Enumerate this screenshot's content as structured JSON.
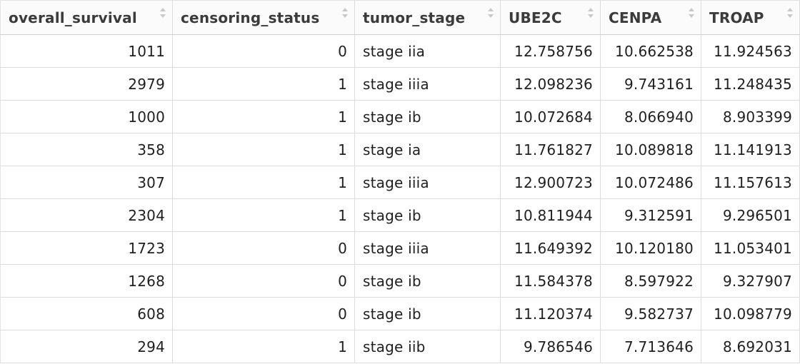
{
  "table": {
    "columns": [
      {
        "label": "overall_survival",
        "align": "right",
        "icon": "sort-icon"
      },
      {
        "label": "censoring_status",
        "align": "right",
        "icon": "sort-icon"
      },
      {
        "label": "tumor_stage",
        "align": "left",
        "icon": "sort-icon"
      },
      {
        "label": "UBE2C",
        "align": "right",
        "icon": "sort-icon"
      },
      {
        "label": "CENPA",
        "align": "right",
        "icon": "sort-icon"
      },
      {
        "label": "TROAP",
        "align": "right",
        "icon": "sort-icon"
      }
    ],
    "rows": [
      [
        "1011",
        "0",
        "stage iia",
        "12.758756",
        "10.662538",
        "11.924563"
      ],
      [
        "2979",
        "1",
        "stage iiia",
        "12.098236",
        "9.743161",
        "11.248435"
      ],
      [
        "1000",
        "1",
        "stage ib",
        "10.072684",
        "8.066940",
        "8.903399"
      ],
      [
        "358",
        "1",
        "stage ia",
        "11.761827",
        "10.089818",
        "11.141913"
      ],
      [
        "307",
        "1",
        "stage iiia",
        "12.900723",
        "10.072486",
        "11.157613"
      ],
      [
        "2304",
        "1",
        "stage ib",
        "10.811944",
        "9.312591",
        "9.296501"
      ],
      [
        "1723",
        "0",
        "stage iiia",
        "11.649392",
        "10.120180",
        "11.053401"
      ],
      [
        "1268",
        "0",
        "stage ib",
        "11.584378",
        "8.597922",
        "9.327907"
      ],
      [
        "608",
        "0",
        "stage ib",
        "11.120374",
        "9.582737",
        "10.098779"
      ],
      [
        "294",
        "1",
        "stage iib",
        "9.786546",
        "7.713646",
        "8.692031"
      ]
    ]
  },
  "colors": {
    "header_text": "#3b3b3b",
    "cell_text": "#1f1f1f",
    "grid_line": "#dcdcdc",
    "sort_icon": "#c8c8c8"
  }
}
